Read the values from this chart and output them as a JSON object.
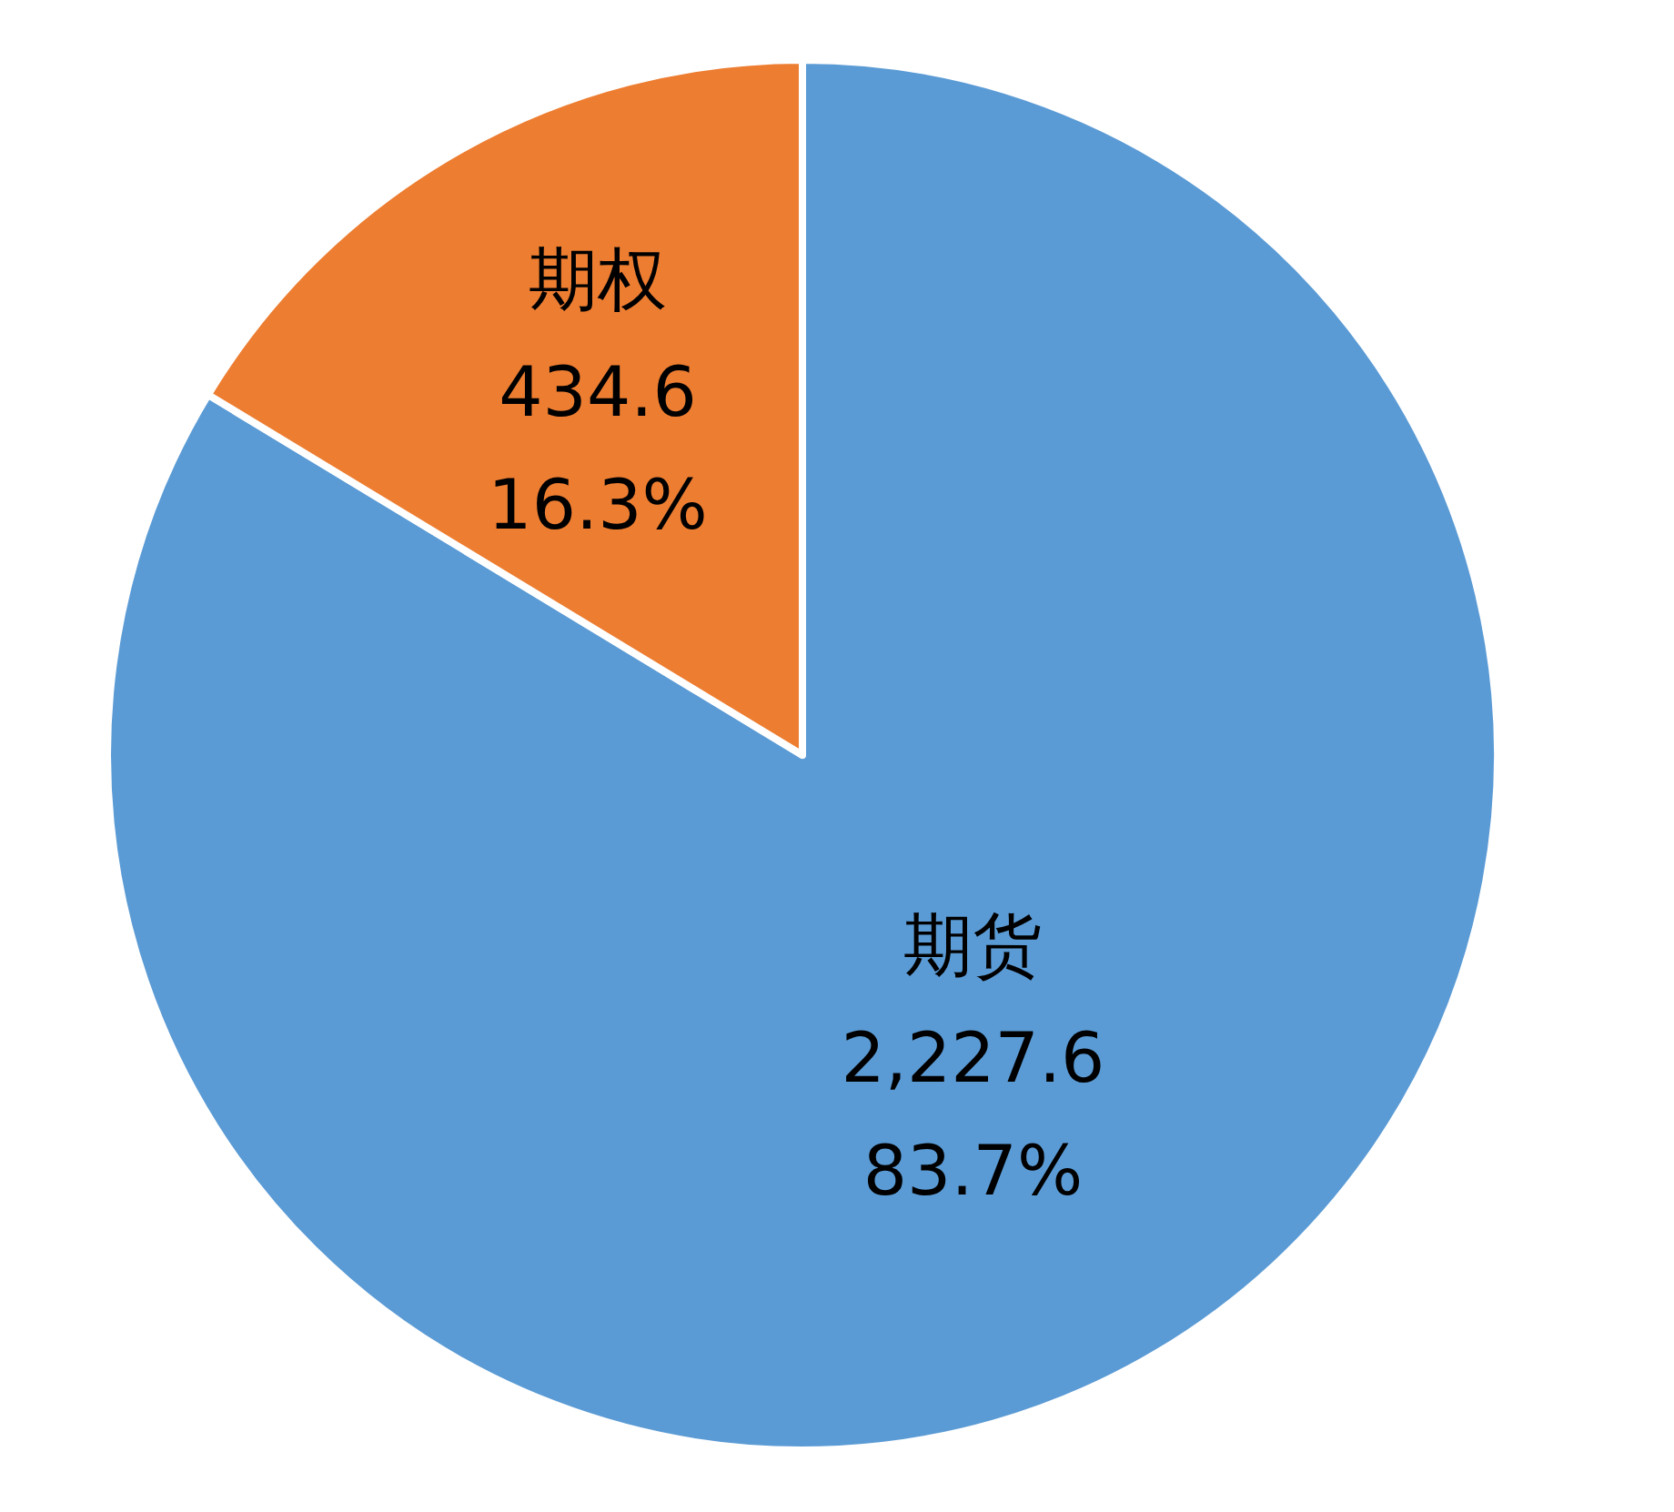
{
  "chart_data": {
    "type": "pie",
    "categories": [
      "期货",
      "期权"
    ],
    "values": [
      2227.6,
      434.6
    ],
    "colors": [
      "#5b9bd5",
      "#ed7d31"
    ],
    "value_labels": [
      "2,227.6",
      "434.6"
    ],
    "annotations": [
      {
        "text": "83.7%",
        "x": "期货"
      },
      {
        "text": "16.3%",
        "x": "期权"
      }
    ]
  }
}
